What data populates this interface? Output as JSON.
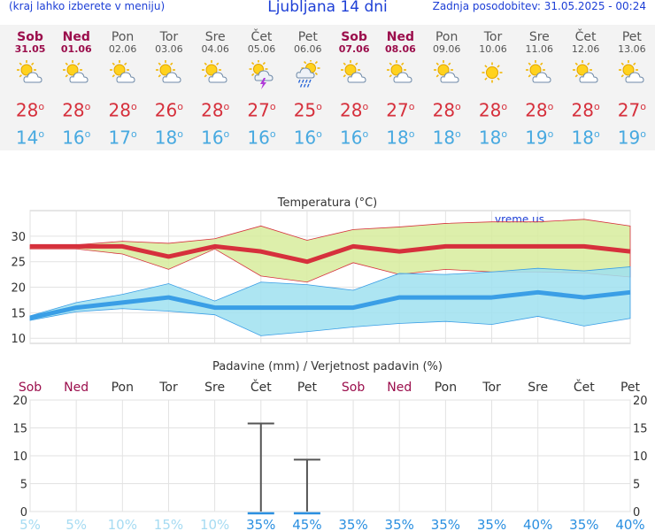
{
  "header": {
    "left_note": "(kraj lahko izberete v meniju)",
    "title": "Ljubljana 14 dni",
    "last_update": "Zadnja posodobitev: 31.05.2025 - 00:24"
  },
  "degree_symbol": "o",
  "colors": {
    "weekend": "#9b0e4c",
    "max_line": "#d6303c",
    "min_line": "#3a9ee6",
    "max_band": "#d7ec9c",
    "min_band": "#9fe0f0",
    "bar": "#555555",
    "header_blue": "#1d3fd6"
  },
  "days": [
    {
      "name": "Sob",
      "date": "31.05",
      "weekend": true,
      "icon": "sun-cloud-icon",
      "max": "28",
      "min": "14"
    },
    {
      "name": "Ned",
      "date": "01.06",
      "weekend": true,
      "icon": "sun-cloud-icon",
      "max": "28",
      "min": "16"
    },
    {
      "name": "Pon",
      "date": "02.06",
      "weekend": false,
      "icon": "sun-cloud-icon",
      "max": "28",
      "min": "17"
    },
    {
      "name": "Tor",
      "date": "03.06",
      "weekend": false,
      "icon": "sun-cloud-icon",
      "max": "26",
      "min": "18"
    },
    {
      "name": "Sre",
      "date": "04.06",
      "weekend": false,
      "icon": "sun-cloud-icon",
      "max": "28",
      "min": "16"
    },
    {
      "name": "Čet",
      "date": "05.06",
      "weekend": false,
      "icon": "thunderstorm-icon",
      "max": "27",
      "min": "16"
    },
    {
      "name": "Pet",
      "date": "06.06",
      "weekend": false,
      "icon": "rain-cloud-icon",
      "max": "25",
      "min": "16"
    },
    {
      "name": "Sob",
      "date": "07.06",
      "weekend": true,
      "icon": "sun-cloud-icon",
      "max": "28",
      "min": "16"
    },
    {
      "name": "Ned",
      "date": "08.06",
      "weekend": true,
      "icon": "sun-cloud-icon",
      "max": "27",
      "min": "18"
    },
    {
      "name": "Pon",
      "date": "09.06",
      "weekend": false,
      "icon": "sun-cloud-icon",
      "max": "28",
      "min": "18"
    },
    {
      "name": "Tor",
      "date": "10.06",
      "weekend": false,
      "icon": "sun-icon",
      "max": "28",
      "min": "18"
    },
    {
      "name": "Sre",
      "date": "11.06",
      "weekend": false,
      "icon": "sun-cloud-icon",
      "max": "28",
      "min": "19"
    },
    {
      "name": "Čet",
      "date": "12.06",
      "weekend": false,
      "icon": "sun-cloud-icon",
      "max": "28",
      "min": "18"
    },
    {
      "name": "Pet",
      "date": "13.06",
      "weekend": false,
      "icon": "sun-cloud-icon",
      "max": "27",
      "min": "19"
    }
  ],
  "chart_data": [
    {
      "type": "area",
      "title": "Temperatura (°C)",
      "watermark": "vreme.us",
      "x": [
        "31.05",
        "01.06",
        "02.06",
        "03.06",
        "04.06",
        "05.06",
        "06.06",
        "07.06",
        "08.06",
        "09.06",
        "10.06",
        "11.06",
        "12.06",
        "13.06"
      ],
      "ylim": [
        9,
        35
      ],
      "yticks": [
        10,
        15,
        20,
        25,
        30
      ],
      "grid": true,
      "series": [
        {
          "name": "max",
          "values": [
            28,
            28,
            28,
            26,
            28,
            27,
            25,
            28,
            27,
            28,
            28,
            28,
            28,
            27
          ],
          "band_low": [
            27.5,
            27.5,
            26.5,
            23.5,
            27.5,
            22.2,
            21,
            24.8,
            22.5,
            23.5,
            23,
            23,
            22.8,
            22
          ],
          "band_high": [
            28.3,
            28.3,
            29,
            28.6,
            29.5,
            32,
            29.2,
            31.3,
            31.8,
            32.5,
            32.8,
            32.8,
            33.3,
            32
          ]
        },
        {
          "name": "min",
          "values": [
            14,
            16,
            17,
            18,
            16,
            16,
            16,
            16,
            18,
            18,
            18,
            19,
            18,
            19
          ],
          "band_low": [
            13.5,
            15.2,
            15.8,
            15.3,
            14.6,
            10.5,
            11.3,
            12.2,
            12.9,
            13.3,
            12.7,
            14.3,
            12.4,
            13.9
          ],
          "band_high": [
            14.4,
            17,
            18.6,
            20.7,
            17.3,
            21,
            20.5,
            19.4,
            22.7,
            22.5,
            23,
            23.7,
            23.2,
            24
          ]
        }
      ]
    },
    {
      "type": "bar",
      "title": "Padavine (mm) / Verjetnost padavin (%)",
      "ylim": [
        0,
        20
      ],
      "yticks": [
        0,
        5,
        10,
        15,
        20
      ],
      "grid": true,
      "categories": [
        "Sob",
        "Ned",
        "Pon",
        "Tor",
        "Sre",
        "Čet",
        "Pet",
        "Sob",
        "Ned",
        "Pon",
        "Tor",
        "Sre",
        "Čet",
        "Pet"
      ],
      "precip_mm": [
        0,
        0,
        0,
        0,
        0,
        0.1,
        0.1,
        0,
        0,
        0,
        0,
        0,
        0,
        0
      ],
      "range_high": [
        null,
        null,
        null,
        null,
        null,
        15.8,
        9.3,
        null,
        null,
        null,
        null,
        null,
        null,
        null
      ],
      "probability": [
        "5%",
        "5%",
        "10%",
        "15%",
        "10%",
        "35%",
        "45%",
        "35%",
        "35%",
        "35%",
        "35%",
        "40%",
        "35%",
        "40%"
      ]
    }
  ]
}
